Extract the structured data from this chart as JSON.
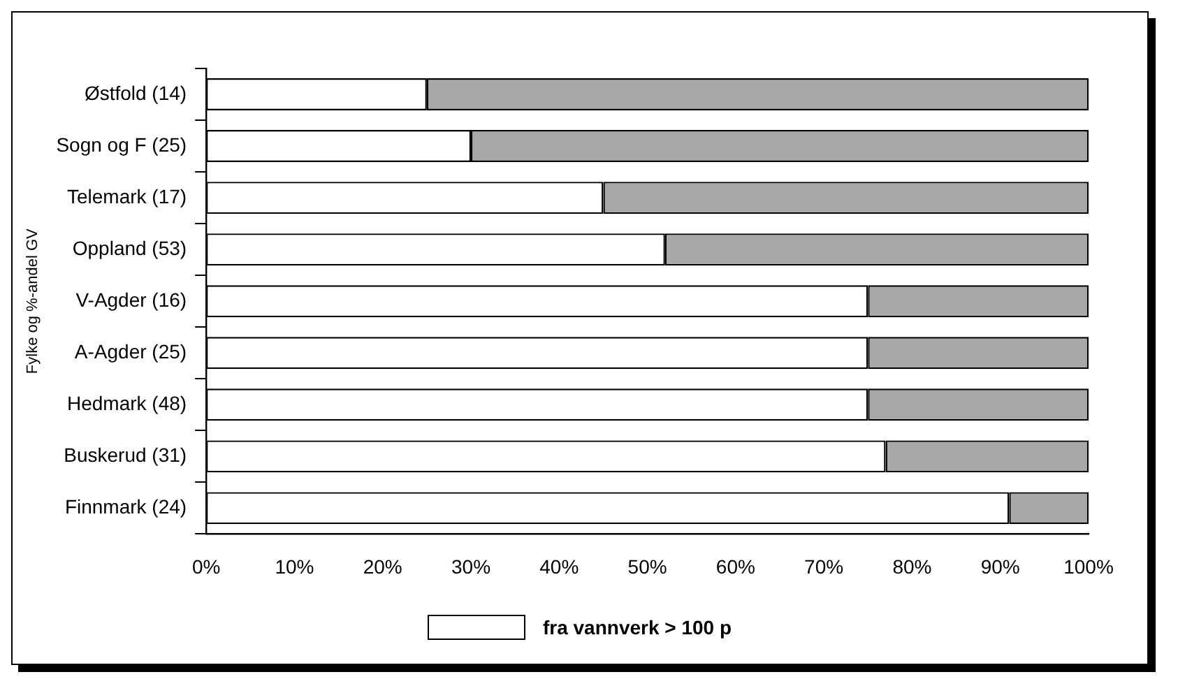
{
  "chart_data": {
    "type": "bar",
    "orientation": "horizontal",
    "stacked": true,
    "ylabel": "Fylke og %-andel GV",
    "categories": [
      "Østfold (14)",
      "Sogn og F (25)",
      "Telemark (17)",
      "Oppland (53)",
      "V-Agder (16)",
      "A-Agder (25)",
      "Hedmark (48)",
      "Buskerud (31)",
      "Finnmark (24)"
    ],
    "series": [
      {
        "name": "fra vannverk > 100 p",
        "color": "#ffffff",
        "values": [
          25,
          30,
          45,
          52,
          75,
          75,
          75,
          77,
          91
        ]
      },
      {
        "color": "#a8a8a8",
        "values": [
          75,
          70,
          55,
          48,
          25,
          25,
          25,
          23,
          9
        ]
      }
    ],
    "xlim": [
      0,
      100
    ],
    "xticks": [
      {
        "value": 0,
        "label": "0%"
      },
      {
        "value": 10,
        "label": "10%"
      },
      {
        "value": 20,
        "label": "20%"
      },
      {
        "value": 30,
        "label": "30%"
      },
      {
        "value": 40,
        "label": "40%"
      },
      {
        "value": 50,
        "label": "50%"
      },
      {
        "value": 60,
        "label": "60%"
      },
      {
        "value": 70,
        "label": "70%"
      },
      {
        "value": 80,
        "label": "80%"
      },
      {
        "value": 90,
        "label": "90%"
      },
      {
        "value": 100,
        "label": "100%"
      }
    ],
    "grid": false,
    "legend": "bottom"
  }
}
